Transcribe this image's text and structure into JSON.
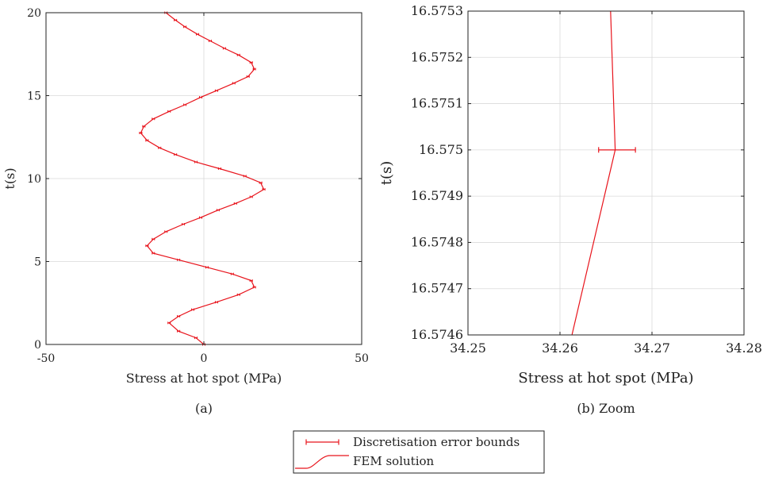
{
  "chart_data": [
    {
      "type": "line",
      "caption": "(a)",
      "xlabel": "Stress at hot spot (MPa)",
      "ylabel": "t(s)",
      "xlim": [
        -50,
        50
      ],
      "ylim": [
        0,
        20
      ],
      "xticks": [
        -50,
        0,
        50
      ],
      "yticks": [
        0,
        5,
        10,
        15,
        20
      ],
      "grid": true,
      "series": [
        {
          "name": "FEM solution",
          "color": "#e8141c",
          "points": [
            [
              0,
              0
            ],
            [
              -2.5,
              0.4
            ],
            [
              -8,
              0.8
            ],
            [
              -11,
              1.3
            ],
            [
              -8,
              1.7
            ],
            [
              -3.5,
              2.1
            ],
            [
              4,
              2.55
            ],
            [
              11,
              3.0
            ],
            [
              16,
              3.45
            ],
            [
              15,
              3.85
            ],
            [
              9,
              4.25
            ],
            [
              1,
              4.65
            ],
            [
              -8,
              5.1
            ],
            [
              -16,
              5.5
            ],
            [
              -18,
              5.95
            ],
            [
              -16,
              6.35
            ],
            [
              -12,
              6.8
            ],
            [
              -6.5,
              7.25
            ],
            [
              -1,
              7.65
            ],
            [
              4.5,
              8.1
            ],
            [
              10,
              8.5
            ],
            [
              15,
              8.9
            ],
            [
              19,
              9.35
            ],
            [
              18,
              9.75
            ],
            [
              13,
              10.15
            ],
            [
              5,
              10.6
            ],
            [
              -2.5,
              11.0
            ],
            [
              -9,
              11.45
            ],
            [
              -14,
              11.85
            ],
            [
              -18,
              12.3
            ],
            [
              -20,
              12.75
            ],
            [
              -19,
              13.15
            ],
            [
              -16,
              13.6
            ],
            [
              -11,
              14.05
            ],
            [
              -6,
              14.45
            ],
            [
              -1,
              14.9
            ],
            [
              4,
              15.3
            ],
            [
              9.5,
              15.75
            ],
            [
              14,
              16.15
            ],
            [
              16,
              16.6
            ],
            [
              15,
              17.0
            ],
            [
              11,
              17.45
            ],
            [
              6.5,
              17.85
            ],
            [
              2,
              18.3
            ],
            [
              -2,
              18.7
            ],
            [
              -6,
              19.15
            ],
            [
              -9,
              19.55
            ],
            [
              -12,
              20.0
            ]
          ]
        }
      ]
    },
    {
      "type": "line",
      "caption": "(b) Zoom",
      "xlabel": "Stress at hot spot (MPa)",
      "ylabel": "t(s)",
      "xlim": [
        34.25,
        34.28
      ],
      "ylim": [
        16.5746,
        16.5753
      ],
      "xticks": [
        34.25,
        34.26,
        34.27,
        34.28
      ],
      "yticks": [
        16.5746,
        16.5747,
        16.5748,
        16.5749,
        16.575,
        16.5751,
        16.5752,
        16.5753
      ],
      "grid": true,
      "series": [
        {
          "name": "FEM solution",
          "color": "#e8141c",
          "points": [
            [
              34.2613,
              16.5746
            ],
            [
              34.266,
              16.575
            ],
            [
              34.2655,
              16.5753
            ]
          ]
        },
        {
          "name": "Discretisation error bounds",
          "color": "#e8141c",
          "errorbars": [
            {
              "y": 16.575,
              "x": 34.266,
              "xmin": 34.2642,
              "xmax": 34.2682
            }
          ]
        }
      ]
    }
  ],
  "legend": {
    "placement": "bottom-center",
    "entries": [
      "Discretisation error bounds",
      "FEM solution"
    ],
    "color": "#e8141c"
  }
}
